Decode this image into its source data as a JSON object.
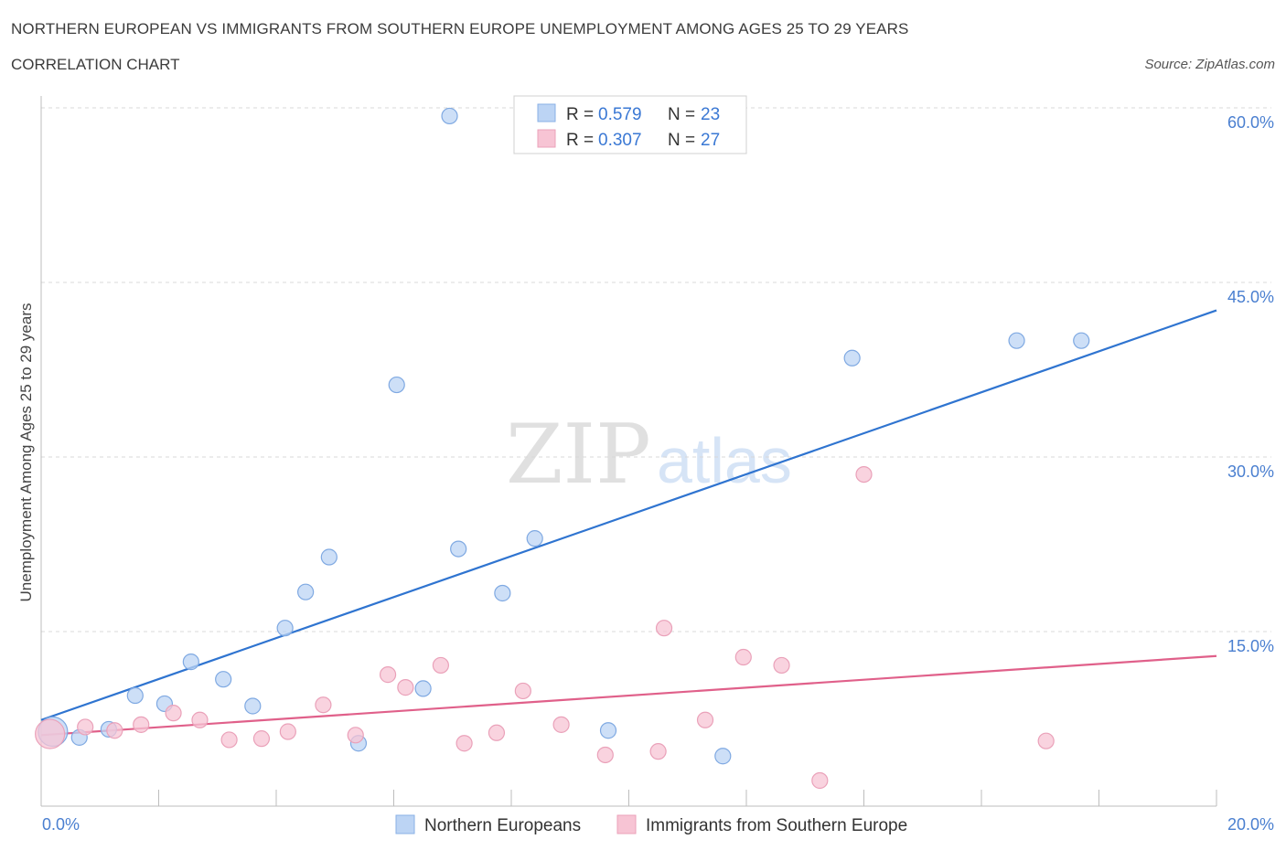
{
  "title": "NORTHERN EUROPEAN VS IMMIGRANTS FROM SOUTHERN EUROPE UNEMPLOYMENT AMONG AGES 25 TO 29 YEARS",
  "subtitle": "CORRELATION CHART",
  "source": "Source: ZipAtlas.com",
  "watermark": {
    "zip": "ZIP",
    "atlas": "atlas"
  },
  "colors": {
    "blue": "#2f74d0",
    "blue_fill": "#bcd4f4",
    "pink": "#e0608a",
    "pink_fill": "#f7c4d4",
    "tick_text": "#4a7fd0",
    "grid": "#d8d8d8"
  },
  "legend": {
    "r_label": "R =",
    "n_label": "N =",
    "rows": [
      {
        "r": "0.579",
        "n": "23",
        "series": "Northern Europeans"
      },
      {
        "r": "0.307",
        "n": "27",
        "series": "Immigrants from Southern Europe"
      }
    ]
  },
  "chart_data": {
    "type": "scatter",
    "title": "NORTHERN EUROPEAN VS IMMIGRANTS FROM SOUTHERN EUROPE UNEMPLOYMENT AMONG AGES 25 TO 29 YEARS",
    "xlabel": "",
    "ylabel": "Unemployment Among Ages 25 to 29 years",
    "xlim": [
      0,
      20
    ],
    "ylim": [
      0,
      60
    ],
    "x_tick_labels": [
      "0.0%",
      "20.0%"
    ],
    "y_ticks": [
      15,
      30,
      45,
      60
    ],
    "y_tick_labels": [
      "15.0%",
      "30.0%",
      "45.0%",
      "60.0%"
    ],
    "grid": true,
    "legend_position": "top-center",
    "series": [
      {
        "name": "Northern Europeans",
        "color": "#2f74d0",
        "r": 0.579,
        "n": 23,
        "trend": {
          "x": [
            0,
            20
          ],
          "y": [
            7.4,
            42.6
          ]
        },
        "points": [
          {
            "x": 0.2,
            "y": 6.4,
            "big": true
          },
          {
            "x": 0.65,
            "y": 5.9
          },
          {
            "x": 1.15,
            "y": 6.6
          },
          {
            "x": 1.6,
            "y": 9.5
          },
          {
            "x": 2.1,
            "y": 8.8
          },
          {
            "x": 2.55,
            "y": 12.4
          },
          {
            "x": 3.1,
            "y": 10.9
          },
          {
            "x": 3.6,
            "y": 8.6
          },
          {
            "x": 4.15,
            "y": 15.3
          },
          {
            "x": 4.5,
            "y": 18.4
          },
          {
            "x": 4.9,
            "y": 21.4
          },
          {
            "x": 5.4,
            "y": 5.4
          },
          {
            "x": 6.05,
            "y": 36.2
          },
          {
            "x": 6.5,
            "y": 10.1
          },
          {
            "x": 6.95,
            "y": 59.3
          },
          {
            "x": 7.1,
            "y": 22.1
          },
          {
            "x": 7.85,
            "y": 18.3
          },
          {
            "x": 8.4,
            "y": 23.0
          },
          {
            "x": 9.65,
            "y": 6.5
          },
          {
            "x": 11.6,
            "y": 4.3
          },
          {
            "x": 13.8,
            "y": 38.5
          },
          {
            "x": 16.6,
            "y": 40.0
          },
          {
            "x": 17.7,
            "y": 40.0
          }
        ]
      },
      {
        "name": "Immigrants from Southern Europe",
        "color": "#e0608a",
        "r": 0.307,
        "n": 27,
        "trend": {
          "x": [
            0,
            20
          ],
          "y": [
            6.1,
            12.9
          ]
        },
        "points": [
          {
            "x": 0.15,
            "y": 6.2,
            "big": true
          },
          {
            "x": 0.75,
            "y": 6.8
          },
          {
            "x": 1.25,
            "y": 6.5
          },
          {
            "x": 1.7,
            "y": 7.0
          },
          {
            "x": 2.25,
            "y": 8.0
          },
          {
            "x": 2.7,
            "y": 7.4
          },
          {
            "x": 3.2,
            "y": 5.7
          },
          {
            "x": 3.75,
            "y": 5.8
          },
          {
            "x": 4.2,
            "y": 6.4
          },
          {
            "x": 4.8,
            "y": 8.7
          },
          {
            "x": 5.35,
            "y": 6.1
          },
          {
            "x": 5.9,
            "y": 11.3
          },
          {
            "x": 6.2,
            "y": 10.2
          },
          {
            "x": 6.8,
            "y": 12.1
          },
          {
            "x": 7.2,
            "y": 5.4
          },
          {
            "x": 7.75,
            "y": 6.3
          },
          {
            "x": 8.2,
            "y": 9.9
          },
          {
            "x": 8.85,
            "y": 7.0
          },
          {
            "x": 9.6,
            "y": 4.4
          },
          {
            "x": 10.6,
            "y": 15.3
          },
          {
            "x": 10.5,
            "y": 4.7
          },
          {
            "x": 11.3,
            "y": 7.4
          },
          {
            "x": 11.95,
            "y": 12.8
          },
          {
            "x": 12.6,
            "y": 12.1
          },
          {
            "x": 13.25,
            "y": 2.2
          },
          {
            "x": 14.0,
            "y": 28.5
          },
          {
            "x": 17.1,
            "y": 5.6
          }
        ]
      }
    ]
  }
}
